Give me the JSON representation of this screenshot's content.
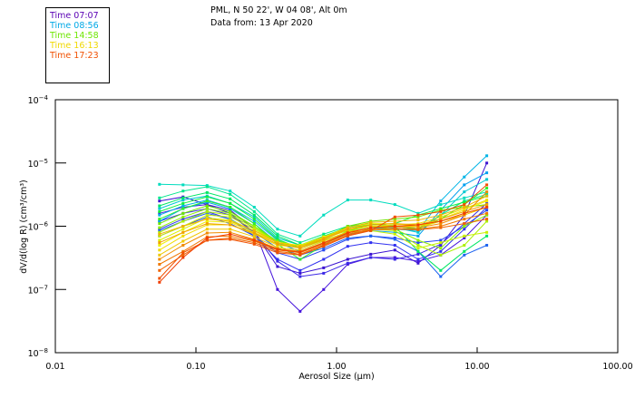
{
  "header": {
    "location": "PML, N 50 22', W 04 08', Alt 0m",
    "date_line": "Data from: 13 Apr 2020"
  },
  "legend": [
    {
      "label": "Time 07:07",
      "color": "#5a00b4"
    },
    {
      "label": "Time 08:56",
      "color": "#00a8e6"
    },
    {
      "label": "Time 14:58",
      "color": "#6ee600"
    },
    {
      "label": "Time 16:13",
      "color": "#f0d800"
    },
    {
      "label": "Time 17:23",
      "color": "#f05000"
    }
  ],
  "chart_data": {
    "type": "line",
    "title": "PML, N 50 22', W 04 08', Alt 0m — Data from: 13 Apr 2020",
    "xlabel": "Aerosol Size (μm)",
    "ylabel": "dV/d(log R) (cm³/cm³)",
    "xscale": "log",
    "yscale": "log",
    "xlim": [
      0.01,
      100
    ],
    "ylim": [
      1e-08,
      0.0001
    ],
    "x_ticks": [
      {
        "value": 0.01,
        "label": "0.01"
      },
      {
        "value": 0.1,
        "label": "0.10"
      },
      {
        "value": 1,
        "label": "1.00"
      },
      {
        "value": 10,
        "label": "10.00"
      },
      {
        "value": 100,
        "label": "100.00"
      }
    ],
    "y_ticks": [
      {
        "value": 0.0001,
        "base": "10",
        "exp": "−4"
      },
      {
        "value": 1e-05,
        "base": "10",
        "exp": "−5"
      },
      {
        "value": 1e-06,
        "base": "10",
        "exp": "−6"
      },
      {
        "value": 1e-07,
        "base": "10",
        "exp": "−7"
      },
      {
        "value": 1e-08,
        "base": "10",
        "exp": "−8"
      }
    ],
    "grid": false,
    "legend_position": "top-left",
    "x": [
      0.055,
      0.081,
      0.12,
      0.175,
      0.26,
      0.38,
      0.55,
      0.81,
      1.2,
      1.75,
      2.6,
      3.8,
      5.5,
      8.1,
      11.7
    ],
    "series": [
      {
        "name": "Time 07:07",
        "color": "#3c14d2",
        "values": [
          2.5e-06,
          2.9e-06,
          2.2e-06,
          1.6e-06,
          8e-07,
          2.3e-07,
          1.8e-07,
          2.2e-07,
          3e-07,
          3.6e-07,
          4.2e-07,
          2.6e-07,
          5e-07,
          1.5e-06,
          1e-05
        ]
      },
      {
        "name": "",
        "color": "#4614dc",
        "values": [
          1.6e-06,
          2e-06,
          2.2e-06,
          1.8e-06,
          9e-07,
          1e-07,
          4.5e-08,
          1e-07,
          2.5e-07,
          3.2e-07,
          3.2e-07,
          2.8e-07,
          3.5e-07,
          6.5e-07,
          1.5e-06
        ]
      },
      {
        "name": "",
        "color": "#3c28e6",
        "values": [
          1.2e-06,
          1.6e-06,
          1.9e-06,
          1.5e-06,
          8e-07,
          2.8e-07,
          1.6e-07,
          1.8e-07,
          2.6e-07,
          3.2e-07,
          3e-07,
          3.6e-07,
          5.2e-07,
          1.1e-06,
          2.3e-06
        ]
      },
      {
        "name": "",
        "color": "#3232f0",
        "values": [
          9e-07,
          1.3e-06,
          1.7e-06,
          1.3e-06,
          7e-07,
          3e-07,
          2e-07,
          3e-07,
          4.8e-07,
          5.5e-07,
          5e-07,
          3e-07,
          4e-07,
          9e-07,
          2e-06
        ]
      },
      {
        "name": "",
        "color": "#2846f0",
        "values": [
          7e-07,
          1e-06,
          1.4e-06,
          1.1e-06,
          7e-07,
          3.8e-07,
          3e-07,
          4.2e-07,
          6.2e-07,
          7e-07,
          6.5e-07,
          5.5e-07,
          6e-07,
          1e-06,
          1.8e-06
        ]
      },
      {
        "name": "",
        "color": "#1e64f0",
        "values": [
          8.5e-07,
          1.2e-06,
          1.6e-06,
          1.3e-06,
          8e-07,
          4.5e-07,
          3.5e-07,
          4.5e-07,
          6.5e-07,
          7e-07,
          6.2e-07,
          4e-07,
          1.6e-07,
          3.5e-07,
          5e-07
        ]
      },
      {
        "name": "Time 08:56",
        "color": "#00a0f0",
        "values": [
          1.2e-06,
          1.9e-06,
          2.4e-06,
          1.9e-06,
          1.1e-06,
          5.5e-07,
          4e-07,
          5.5e-07,
          7.5e-07,
          8.5e-07,
          8e-07,
          7e-07,
          1.8e-06,
          4.5e-06,
          7e-06
        ]
      },
      {
        "name": "",
        "color": "#00b4e6",
        "values": [
          1.5e-06,
          2.1e-06,
          2.6e-06,
          2e-06,
          1.2e-06,
          6e-07,
          4.5e-07,
          6e-07,
          8e-07,
          9.5e-07,
          9e-07,
          8.5e-07,
          2.5e-06,
          6e-06,
          1.3e-05
        ]
      },
      {
        "name": "",
        "color": "#00c8d2",
        "values": [
          1.9e-06,
          2.6e-06,
          3e-06,
          2.3e-06,
          1.4e-06,
          6.5e-07,
          5e-07,
          6.5e-07,
          9e-07,
          1e-06,
          9.5e-07,
          8e-07,
          1.5e-06,
          3.5e-06,
          5.5e-06
        ]
      },
      {
        "name": "",
        "color": "#00dcbe",
        "values": [
          4.6e-06,
          4.5e-06,
          4.4e-06,
          3.6e-06,
          2e-06,
          9e-07,
          7e-07,
          1.5e-06,
          2.6e-06,
          2.6e-06,
          2.2e-06,
          1.6e-06,
          2.2e-06,
          2.8e-06,
          3.5e-06
        ]
      },
      {
        "name": "",
        "color": "#00e68c",
        "values": [
          2.8e-06,
          3.6e-06,
          4.2e-06,
          3.2e-06,
          1.7e-06,
          7.5e-07,
          5.5e-07,
          7.5e-07,
          1e-06,
          1.1e-06,
          1e-06,
          9e-07,
          1.5e-06,
          2.5e-06,
          3.2e-06
        ]
      },
      {
        "name": "",
        "color": "#00e664",
        "values": [
          2.1e-06,
          2.8e-06,
          3.4e-06,
          2.7e-06,
          1.5e-06,
          7e-07,
          5e-07,
          7e-07,
          9.5e-07,
          1.1e-06,
          1e-06,
          4e-07,
          2e-07,
          4e-07,
          7e-07
        ]
      },
      {
        "name": "",
        "color": "#14f03c",
        "values": [
          1.7e-06,
          2.3e-06,
          2.9e-06,
          2.3e-06,
          1.3e-06,
          6.2e-07,
          4.5e-07,
          6.8e-07,
          9.5e-07,
          1.05e-06,
          1.1e-06,
          1.5e-06,
          1.9e-06,
          2.4e-06,
          3e-06
        ]
      },
      {
        "name": "",
        "color": "#32f028",
        "values": [
          1.3e-06,
          1.9e-06,
          2.5e-06,
          2e-06,
          1.1e-06,
          5.2e-07,
          3e-07,
          5e-07,
          8.5e-07,
          1e-06,
          1e-06,
          9e-07,
          1.3e-06,
          2.2e-06,
          4e-06
        ]
      },
      {
        "name": "Time 14:58",
        "color": "#6ee600",
        "values": [
          1.1e-06,
          1.6e-06,
          2.1e-06,
          1.7e-06,
          1e-06,
          5.5e-07,
          4.5e-07,
          6.5e-07,
          1e-06,
          1.2e-06,
          1.3e-06,
          1.4e-06,
          1.8e-06,
          2e-06,
          2.2e-06
        ]
      },
      {
        "name": "",
        "color": "#8cf000",
        "values": [
          9.5e-07,
          1.4e-06,
          1.9e-06,
          1.6e-06,
          1e-06,
          5.8e-07,
          4.8e-07,
          6.8e-07,
          9e-07,
          1e-06,
          9e-07,
          6e-07,
          4.5e-07,
          1e-06,
          1.5e-06
        ]
      },
      {
        "name": "",
        "color": "#aaf000",
        "values": [
          8e-07,
          1.2e-06,
          1.7e-06,
          1.5e-06,
          9.5e-07,
          5.5e-07,
          4.8e-07,
          6.5e-07,
          8.5e-07,
          9e-07,
          8.5e-07,
          5e-07,
          3.5e-07,
          5e-07,
          1.2e-06
        ]
      },
      {
        "name": "",
        "color": "#c8f000",
        "values": [
          7e-07,
          1e-06,
          1.5e-06,
          1.4e-06,
          9e-07,
          5.5e-07,
          4.5e-07,
          6e-07,
          8e-07,
          8.5e-07,
          7.5e-07,
          4.5e-07,
          5.5e-07,
          7e-07,
          8e-07
        ]
      },
      {
        "name": "",
        "color": "#dcf000",
        "values": [
          6e-07,
          9e-07,
          1.35e-06,
          1.25e-06,
          8.5e-07,
          5.5e-07,
          4.8e-07,
          6.5e-07,
          9e-07,
          1e-06,
          1e-06,
          9.5e-07,
          1.2e-06,
          1.6e-06,
          2e-06
        ]
      },
      {
        "name": "",
        "color": "#f0f000",
        "values": [
          5e-07,
          8e-07,
          1.2e-06,
          1.15e-06,
          8e-07,
          5.5e-07,
          5e-07,
          6.8e-07,
          9.5e-07,
          1.1e-06,
          1.1e-06,
          1e-06,
          1.3e-06,
          1.8e-06,
          2.5e-06
        ]
      },
      {
        "name": "Time 16:13",
        "color": "#f0dc00",
        "values": [
          4.2e-07,
          7e-07,
          1.05e-06,
          1.05e-06,
          7.5e-07,
          5e-07,
          4.6e-07,
          6.2e-07,
          8.8e-07,
          1e-06,
          1.05e-06,
          1.1e-06,
          1.4e-06,
          1.9e-06,
          2.6e-06
        ]
      },
      {
        "name": "",
        "color": "#f0c800",
        "values": [
          3.5e-07,
          5.8e-07,
          9e-07,
          9e-07,
          6.8e-07,
          4.6e-07,
          4.2e-07,
          5.8e-07,
          8.2e-07,
          9.5e-07,
          1e-06,
          1e-06,
          1.2e-06,
          1.5e-06,
          2e-06
        ]
      },
      {
        "name": "",
        "color": "#f0b400",
        "values": [
          7.5e-07,
          1e-06,
          1.3e-06,
          1.2e-06,
          8.5e-07,
          5.5e-07,
          4.8e-07,
          6.5e-07,
          9.5e-07,
          1.15e-06,
          1.2e-06,
          1.25e-06,
          1.5e-06,
          2e-06,
          3e-06
        ]
      },
      {
        "name": "",
        "color": "#f0a000",
        "values": [
          5.5e-07,
          8e-07,
          1.1e-06,
          1.05e-06,
          7.8e-07,
          5.2e-07,
          4.5e-07,
          6.2e-07,
          9e-07,
          1.05e-06,
          1.1e-06,
          1.05e-06,
          1.3e-06,
          1.7e-06,
          2.2e-06
        ]
      },
      {
        "name": "",
        "color": "#f08c00",
        "values": [
          3e-07,
          5e-07,
          7.8e-07,
          8e-07,
          6.2e-07,
          4.4e-07,
          4e-07,
          5.5e-07,
          8e-07,
          9.5e-07,
          9.8e-07,
          9.5e-07,
          1.1e-06,
          1.5e-06,
          3.5e-06
        ]
      },
      {
        "name": "",
        "color": "#f07800",
        "values": [
          2.5e-07,
          4e-07,
          6.8e-07,
          7e-07,
          5.8e-07,
          4.2e-07,
          3.8e-07,
          5.2e-07,
          7.5e-07,
          9e-07,
          9.2e-07,
          9e-07,
          1e-06,
          1.3e-06,
          1.6e-06
        ]
      },
      {
        "name": "",
        "color": "#f06400",
        "values": [
          2e-07,
          3.5e-07,
          6e-07,
          6.5e-07,
          5.5e-07,
          4e-07,
          3.6e-07,
          5e-07,
          7.2e-07,
          8.8e-07,
          9e-07,
          8.8e-07,
          9.5e-07,
          1.1e-06,
          1.3e-06
        ]
      },
      {
        "name": "Time 17:23",
        "color": "#f05000",
        "values": [
          1.5e-07,
          3.8e-07,
          6e-07,
          6.2e-07,
          5.2e-07,
          3.8e-07,
          3.5e-07,
          4.8e-07,
          7e-07,
          8.5e-07,
          1.4e-06,
          1.5e-06,
          1.7e-06,
          2.2e-06,
          4.5e-06
        ]
      },
      {
        "name": "",
        "color": "#f03c00",
        "values": [
          1.3e-07,
          3.2e-07,
          6.5e-07,
          7.5e-07,
          6e-07,
          4.3e-07,
          3.9e-07,
          5.4e-07,
          7.8e-07,
          9.5e-07,
          1e-06,
          1.05e-06,
          1.2e-06,
          1.6e-06,
          2e-06
        ]
      }
    ]
  }
}
